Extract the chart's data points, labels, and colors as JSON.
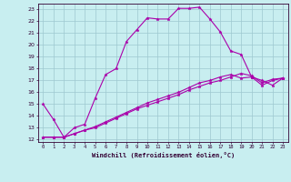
{
  "xlabel": "Windchill (Refroidissement éolien,°C)",
  "xlim": [
    -0.5,
    23.5
  ],
  "ylim": [
    11.8,
    23.5
  ],
  "yticks": [
    12,
    13,
    14,
    15,
    16,
    17,
    18,
    19,
    20,
    21,
    22,
    23
  ],
  "xticks": [
    0,
    1,
    2,
    3,
    4,
    5,
    6,
    7,
    8,
    9,
    10,
    11,
    12,
    13,
    14,
    15,
    16,
    17,
    18,
    19,
    20,
    21,
    22,
    23
  ],
  "bg_color": "#c8eef0",
  "line_color": "#aa00aa",
  "grid_color": "#9ec8d0",
  "line1_x": [
    0,
    1,
    2,
    3,
    4,
    5,
    6,
    7,
    8,
    9,
    10,
    11,
    12,
    13,
    14,
    15,
    16,
    17,
    18,
    19,
    20,
    21,
    22,
    23
  ],
  "line1_y": [
    15.0,
    13.7,
    12.2,
    13.0,
    13.3,
    15.5,
    17.5,
    18.0,
    20.3,
    21.3,
    22.3,
    22.2,
    22.2,
    23.1,
    23.1,
    23.2,
    22.2,
    21.1,
    19.5,
    19.2,
    17.3,
    17.0,
    16.6,
    17.2
  ],
  "line2_x": [
    0,
    1,
    2,
    3,
    4,
    5,
    6,
    7,
    8,
    9,
    10,
    11,
    12,
    13,
    14,
    15,
    16,
    17,
    18,
    19,
    20,
    21,
    22,
    23
  ],
  "line2_y": [
    12.2,
    12.2,
    12.2,
    12.5,
    12.8,
    13.1,
    13.5,
    13.9,
    14.3,
    14.7,
    15.1,
    15.4,
    15.7,
    16.0,
    16.4,
    16.8,
    17.0,
    17.3,
    17.5,
    17.2,
    17.3,
    16.6,
    17.0,
    17.2
  ],
  "line3_x": [
    0,
    1,
    2,
    3,
    4,
    5,
    6,
    7,
    8,
    9,
    10,
    11,
    12,
    13,
    14,
    15,
    16,
    17,
    18,
    19,
    20,
    21,
    22,
    23
  ],
  "line3_y": [
    12.2,
    12.2,
    12.2,
    12.5,
    12.8,
    13.0,
    13.4,
    13.8,
    14.2,
    14.6,
    14.9,
    15.2,
    15.5,
    15.8,
    16.2,
    16.5,
    16.8,
    17.0,
    17.3,
    17.6,
    17.4,
    16.8,
    17.1,
    17.2
  ]
}
